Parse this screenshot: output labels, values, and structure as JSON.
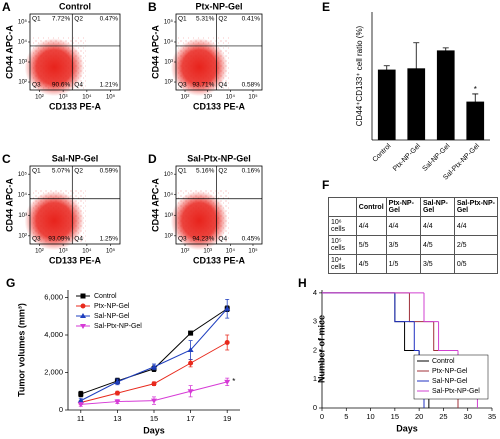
{
  "chart_data": [
    {
      "type": "flow",
      "panel": "A",
      "title": "Control",
      "xlabel": "CD133 PE-A",
      "ylabel": "CD44 APC-A",
      "log_scale": true,
      "color": "#e8231c",
      "xlim": [
        40,
        250000
      ],
      "ylim": [
        40,
        250000
      ],
      "xticks": [
        {
          "value": 100,
          "label": "10²"
        },
        {
          "value": 1000,
          "label": "10³"
        },
        {
          "value": 10000,
          "label": "10⁴"
        },
        {
          "value": 100000,
          "label": "10⁵"
        }
      ],
      "yticks": [
        {
          "value": 100,
          "label": "10²"
        },
        {
          "value": 1000,
          "label": "10³"
        },
        {
          "value": 10000,
          "label": "10⁴"
        },
        {
          "value": 100000,
          "label": "10⁵"
        }
      ],
      "categories": [
        "Q1",
        "Q2",
        "Q3",
        "Q4"
      ],
      "values": [
        7.72,
        0.47,
        90.6,
        1.21
      ],
      "value_labels": [
        "7.72%",
        "0.47%",
        "90.6%",
        "1.21%"
      ]
    },
    {
      "type": "flow",
      "panel": "B",
      "title": "Ptx-NP-Gel",
      "xlabel": "CD133 PE-A",
      "ylabel": "CD44 APC-A",
      "log_scale": true,
      "color": "#e8231c",
      "xlim": [
        40,
        250000
      ],
      "ylim": [
        40,
        250000
      ],
      "xticks": [
        {
          "value": 100,
          "label": "10²"
        },
        {
          "value": 1000,
          "label": "10³"
        },
        {
          "value": 10000,
          "label": "10⁴"
        },
        {
          "value": 100000,
          "label": "10⁵"
        }
      ],
      "yticks": [
        {
          "value": 100,
          "label": "10²"
        },
        {
          "value": 1000,
          "label": "10³"
        },
        {
          "value": 10000,
          "label": "10⁴"
        },
        {
          "value": 100000,
          "label": "10⁵"
        }
      ],
      "categories": [
        "Q1",
        "Q2",
        "Q3",
        "Q4"
      ],
      "values": [
        5.31,
        0.41,
        93.71,
        0.58
      ],
      "value_labels": [
        "5.31%",
        "0.41%",
        "93.71%",
        "0.58%"
      ]
    },
    {
      "type": "flow",
      "panel": "C",
      "title": "Sal-NP-Gel",
      "xlabel": "CD133 PE-A",
      "ylabel": "CD44 APC-A",
      "log_scale": true,
      "color": "#e8231c",
      "xlim": [
        40,
        250000
      ],
      "ylim": [
        40,
        250000
      ],
      "xticks": [
        {
          "value": 100,
          "label": "10²"
        },
        {
          "value": 1000,
          "label": "10³"
        },
        {
          "value": 10000,
          "label": "10⁴"
        },
        {
          "value": 100000,
          "label": "10⁵"
        }
      ],
      "yticks": [
        {
          "value": 100,
          "label": "10²"
        },
        {
          "value": 1000,
          "label": "10³"
        },
        {
          "value": 10000,
          "label": "10⁴"
        },
        {
          "value": 100000,
          "label": "10⁵"
        }
      ],
      "categories": [
        "Q1",
        "Q2",
        "Q3",
        "Q4"
      ],
      "values": [
        5.07,
        0.59,
        93.09,
        1.25
      ],
      "value_labels": [
        "5.07%",
        "0.59%",
        "93.09%",
        "1.25%"
      ]
    },
    {
      "type": "flow",
      "panel": "D",
      "title": "Sal-Ptx-NP-Gel",
      "xlabel": "CD133 PE-A",
      "ylabel": "CD44 APC-A",
      "log_scale": true,
      "color": "#e8231c",
      "xlim": [
        40,
        250000
      ],
      "ylim": [
        40,
        250000
      ],
      "xticks": [
        {
          "value": 100,
          "label": "10²"
        },
        {
          "value": 1000,
          "label": "10³"
        },
        {
          "value": 10000,
          "label": "10⁴"
        },
        {
          "value": 100000,
          "label": "10⁵"
        }
      ],
      "yticks": [
        {
          "value": 100,
          "label": "10²"
        },
        {
          "value": 1000,
          "label": "10³"
        },
        {
          "value": 10000,
          "label": "10⁴"
        },
        {
          "value": 100000,
          "label": "10⁵"
        }
      ],
      "categories": [
        "Q1",
        "Q2",
        "Q3",
        "Q4"
      ],
      "values": [
        5.16,
        0.16,
        94.23,
        0.45
      ],
      "value_labels": [
        "5.16%",
        "0.16%",
        "94.23%",
        "0.45%"
      ]
    },
    {
      "type": "bar",
      "panel": "E",
      "ylabel": "CD44⁺CD133⁺ cell ratio (%)",
      "color": "#000000",
      "categories": [
        "Control",
        "Ptx-NP-Gel",
        "Sal-NP-Gel",
        "Sal-Ptx-NP-Gel"
      ],
      "values": [
        55,
        56,
        70,
        30
      ],
      "errors": [
        3,
        20,
        2,
        6
      ],
      "ylim": [
        0,
        100
      ],
      "annotations": [
        {
          "text": "*",
          "category": 3
        }
      ]
    },
    {
      "type": "line",
      "panel": "G",
      "xlabel": "Days",
      "ylabel": "Tumor volumes (mm³)",
      "legend": "upper left",
      "x": [
        11,
        13,
        15,
        17,
        19
      ],
      "xlim": [
        10.3,
        19.7
      ],
      "xticks": [
        11,
        13,
        15,
        17,
        19
      ],
      "ylim": [
        0,
        6400
      ],
      "yticks": [
        0,
        {
          "value": 2000,
          "label": "2,000"
        },
        {
          "value": 4000,
          "label": "4,000"
        },
        {
          "value": 6000,
          "label": "6,000"
        }
      ],
      "series": [
        {
          "name": "Control",
          "color": "#000000",
          "marker": "square",
          "values": [
            850,
            1550,
            2200,
            4100,
            5400
          ],
          "errors": [
            150,
            150,
            150,
            100,
            150
          ]
        },
        {
          "name": "Ptx-NP-Gel",
          "color": "#e8291c",
          "marker": "circle",
          "values": [
            400,
            900,
            1400,
            2500,
            3600
          ],
          "errors": [
            100,
            100,
            100,
            200,
            400
          ]
        },
        {
          "name": "Sal-NP-Gel",
          "color": "#1f3fbf",
          "marker": "triangle",
          "values": [
            500,
            1500,
            2300,
            3200,
            5400
          ],
          "errors": [
            100,
            150,
            150,
            500,
            500
          ]
        },
        {
          "name": "Sal-Ptx-NP-Gel",
          "color": "#d63ad6",
          "marker": "triangle-down",
          "values": [
            300,
            450,
            500,
            1000,
            1500
          ],
          "errors": [
            100,
            100,
            200,
            300,
            200
          ]
        }
      ],
      "annotations": [
        {
          "text": "*",
          "x": 19,
          "y": 1500
        }
      ]
    },
    {
      "type": "step",
      "panel": "H",
      "xlabel": "Days",
      "ylabel": "Number of mice",
      "legend": "lower right",
      "xlim": [
        0,
        35
      ],
      "xticks": [
        0,
        5,
        10,
        15,
        20,
        25,
        30,
        35
      ],
      "ylim": [
        0,
        4.1
      ],
      "yticks": [
        0,
        1,
        2,
        3,
        4
      ],
      "series": [
        {
          "name": "Control",
          "color": "#000000",
          "x": [
            0,
            15,
            17,
            20,
            22
          ],
          "values": [
            4,
            3,
            2,
            1,
            0
          ]
        },
        {
          "name": "Ptx-NP-Gel",
          "color": "#a0303a",
          "x": [
            0,
            18,
            23,
            28
          ],
          "values": [
            4,
            3,
            2,
            0
          ]
        },
        {
          "name": "Sal-NP-Gel",
          "color": "#2030c0",
          "x": [
            0,
            15,
            19,
            20,
            21
          ],
          "values": [
            4,
            3,
            2,
            1,
            0
          ]
        },
        {
          "name": "Sal-Ptx-NP-Gel",
          "color": "#d040d0",
          "x": [
            0,
            21,
            24,
            28,
            32
          ],
          "values": [
            4,
            3,
            2,
            1,
            0
          ]
        }
      ]
    }
  ],
  "table": {
    "panel": "F",
    "header": [
      "Control",
      "Ptx-NP-Gel",
      "Sal-NP-Gel",
      "Sal-Ptx-NP-Gel"
    ],
    "rows": [
      [
        "10⁶ cells",
        "4/4",
        "4/4",
        "4/4",
        "4/4"
      ],
      [
        "10⁵ cells",
        "5/5",
        "3/5",
        "4/5",
        "2/5"
      ],
      [
        "10⁴ cells",
        "4/5",
        "1/5",
        "3/5",
        "0/5"
      ]
    ]
  }
}
